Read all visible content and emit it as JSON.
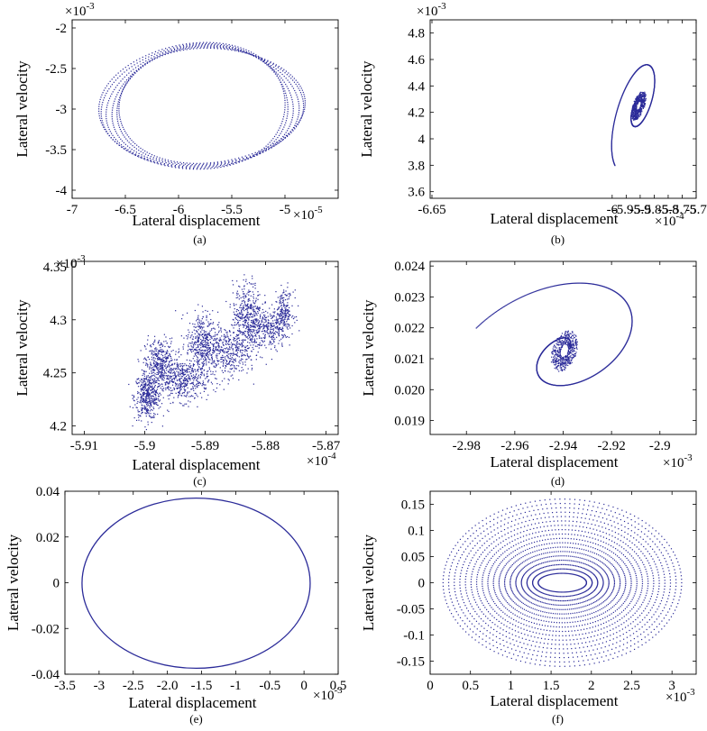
{
  "chart_data": [
    {
      "type": "scatter",
      "panel_label": "(a)",
      "xlabel": "Lateral displacement",
      "ylabel": "Lateral velocity",
      "x_multiplier_base": "×10",
      "x_multiplier_exp": "-5",
      "y_multiplier_base": "×10",
      "y_multiplier_exp": "-3",
      "xlim": [
        -7,
        -4.5
      ],
      "ylim": [
        -4.1,
        -1.9
      ],
      "xticks": [
        -7,
        -6.5,
        -6,
        -5.5,
        -5
      ],
      "xtick_labels": [
        "-7",
        "-6.5",
        "-6",
        "-5.5",
        "-5"
      ],
      "yticks": [
        -4,
        -3.5,
        -3,
        -2.5,
        -2
      ],
      "ytick_labels": [
        "-4",
        "-3.5",
        "-3",
        "-2.5",
        "-2"
      ],
      "series_color": "#2b2b99",
      "shape": "ring",
      "ring": {
        "cx": -5.78,
        "cy": -2.96,
        "rx_outer": 0.97,
        "rx_inner": 0.78,
        "ry_outer": 0.78,
        "ry_inner": 0.71,
        "tilt": 0.12
      }
    },
    {
      "type": "scatter",
      "panel_label": "(b)",
      "xlabel": "Lateral displacement",
      "ylabel": "Lateral velocity",
      "x_multiplier_base": "×10",
      "x_multiplier_exp": "-4",
      "y_multiplier_base": "×10",
      "y_multiplier_exp": "-3",
      "xlim": [
        -6.65,
        -5.7
      ],
      "ylim": [
        3.55,
        4.9
      ],
      "xticks": [
        -6.65,
        -6,
        -5.95,
        -5.9,
        -5.85,
        -5.8,
        -5.75,
        -5.7
      ],
      "xtick_labels": [
        "-6.65",
        "-6",
        "-5.95",
        "-5.9",
        "-5.85",
        "-5.8",
        "-5.75",
        "-5.7"
      ],
      "yticks": [
        3.6,
        3.8,
        4,
        4.2,
        4.4,
        4.6,
        4.8
      ],
      "ytick_labels": [
        "3.6",
        "3.8",
        "4",
        "4.2",
        "4.4",
        "4.6",
        "4.8"
      ],
      "series_color": "#2b2b99",
      "shape": "spiral",
      "spiral": {
        "cx": -5.905,
        "cy": 4.25,
        "r0x": 0.012,
        "r1x": 0.105,
        "r0y": 0.05,
        "r1y": 0.48,
        "turns": 1.6,
        "tilt": 0.6
      }
    },
    {
      "type": "scatter",
      "panel_label": "(c)",
      "xlabel": "Lateral displacement",
      "ylabel": "Lateral velocity",
      "x_multiplier_base": "×10",
      "x_multiplier_exp": "-4",
      "y_multiplier_base": "×10",
      "y_multiplier_exp": "-3",
      "xlim": [
        -5.912,
        -5.868
      ],
      "ylim": [
        4.192,
        4.355
      ],
      "xticks": [
        -5.91,
        -5.9,
        -5.89,
        -5.88,
        -5.87
      ],
      "xtick_labels": [
        "-5.91",
        "-5.9",
        "-5.89",
        "-5.88",
        "-5.87"
      ],
      "yticks": [
        4.2,
        4.25,
        4.3,
        4.35
      ],
      "ytick_labels": [
        "4.2",
        "4.25",
        "4.3",
        "4.35"
      ],
      "series_color": "#2b2b99",
      "shape": "cloud",
      "clusters": [
        {
          "x": -5.8995,
          "y": 4.228,
          "sx": 0.0011,
          "sy": 0.011,
          "n": 420
        },
        {
          "x": -5.8975,
          "y": 4.258,
          "sx": 0.0012,
          "sy": 0.012,
          "n": 380
        },
        {
          "x": -5.8935,
          "y": 4.243,
          "sx": 0.002,
          "sy": 0.01,
          "n": 420
        },
        {
          "x": -5.8905,
          "y": 4.277,
          "sx": 0.0013,
          "sy": 0.015,
          "n": 420
        },
        {
          "x": -5.8865,
          "y": 4.27,
          "sx": 0.002,
          "sy": 0.012,
          "n": 380
        },
        {
          "x": -5.883,
          "y": 4.303,
          "sx": 0.0012,
          "sy": 0.016,
          "n": 440
        },
        {
          "x": -5.8795,
          "y": 4.29,
          "sx": 0.0015,
          "sy": 0.01,
          "n": 260
        },
        {
          "x": -5.877,
          "y": 4.307,
          "sx": 0.0008,
          "sy": 0.01,
          "n": 220
        }
      ]
    },
    {
      "type": "scatter",
      "panel_label": "(d)",
      "xlabel": "Lateral displacement",
      "ylabel": "Lateral velocity",
      "x_multiplier_base": "×10",
      "x_multiplier_exp": "-3",
      "y_multiplier_base": "",
      "y_multiplier_exp": "",
      "xlim": [
        -2.995,
        -2.885
      ],
      "ylim": [
        0.01855,
        0.02415
      ],
      "xticks": [
        -2.98,
        -2.96,
        -2.94,
        -2.92,
        -2.9
      ],
      "xtick_labels": [
        "-2.98",
        "-2.96",
        "-2.94",
        "-2.92",
        "-2.9"
      ],
      "yticks": [
        0.019,
        0.02,
        0.021,
        0.022,
        0.023,
        0.024
      ],
      "ytick_labels": [
        "0.019",
        "0.020",
        "0.021",
        "0.022",
        "0.023",
        "0.024"
      ],
      "series_color": "#2b2b99",
      "shape": "spiral",
      "spiral": {
        "cx": -2.9395,
        "cy": 0.02125,
        "r0x": 0.0025,
        "r1x": 0.045,
        "r0y": 0.0003,
        "r1y": 0.0027,
        "turns": 1.4,
        "tilt": 0.35
      }
    },
    {
      "type": "line",
      "panel_label": "(e)",
      "xlabel": "Lateral displacement",
      "ylabel": "Lateral velocity",
      "x_multiplier_base": "×10",
      "x_multiplier_exp": "-3",
      "y_multiplier_base": "",
      "y_multiplier_exp": "",
      "xlim": [
        -3.5,
        0.5
      ],
      "ylim": [
        -0.04,
        0.04
      ],
      "xticks": [
        -3.5,
        -3,
        -2.5,
        -2,
        -1.5,
        -1,
        -0.5,
        0,
        0.5
      ],
      "xtick_labels": [
        "-3.5",
        "-3",
        "-2.5",
        "-2.0",
        "-1.5",
        "-1",
        "-0.5",
        "0",
        "0.5"
      ],
      "yticks": [
        -0.04,
        -0.02,
        0,
        0.02,
        0.04
      ],
      "ytick_labels": [
        "-0.04",
        "-0.02",
        "0",
        "0.02",
        "0.04"
      ],
      "series_color": "#2b2b99",
      "shape": "ellipse",
      "ellipse": {
        "cx": -1.58,
        "cy": -0.0002,
        "rx": 1.67,
        "ry": 0.0372
      }
    },
    {
      "type": "scatter",
      "panel_label": "(f)",
      "xlabel": "Lateral displacement",
      "ylabel": "Lateral velocity",
      "x_multiplier_base": "×10",
      "x_multiplier_exp": "-3",
      "y_multiplier_base": "",
      "y_multiplier_exp": "",
      "xlim": [
        0,
        3.3
      ],
      "ylim": [
        -0.175,
        0.175
      ],
      "xticks": [
        0,
        0.5,
        1,
        1.5,
        2,
        2.5,
        3
      ],
      "xtick_labels": [
        "0",
        "0.5",
        "1",
        "1.5",
        "2",
        "2.5",
        "3"
      ],
      "yticks": [
        -0.15,
        -0.1,
        -0.05,
        0,
        0.05,
        0.1,
        0.15
      ],
      "ytick_labels": [
        "-0.15",
        "-0.1",
        "-0.05",
        "0",
        "0.05",
        "0.1",
        "0.15"
      ],
      "series_color": "#2b2b99",
      "shape": "annulus",
      "annulus": {
        "cx": 1.64,
        "cy": 0.0,
        "rx_in": 0.3,
        "rx_out": 1.48,
        "ry_in": 0.018,
        "ry_out": 0.16
      }
    }
  ]
}
